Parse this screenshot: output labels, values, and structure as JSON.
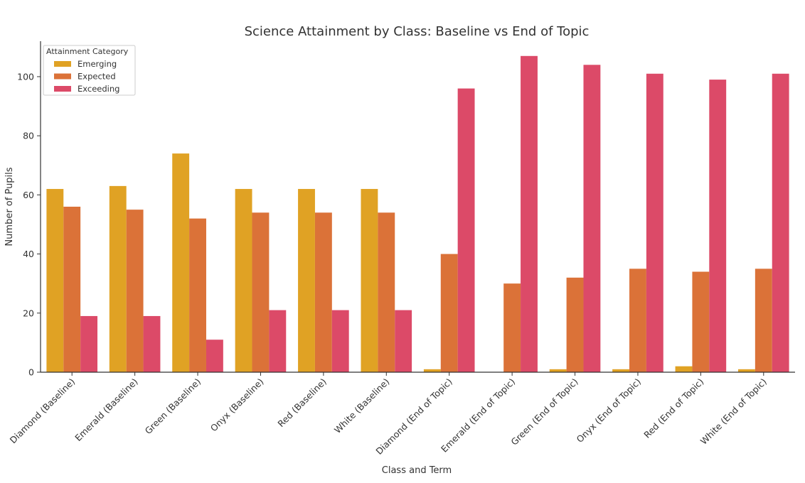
{
  "chart_data": {
    "type": "bar",
    "title": "Science Attainment by Class: Baseline vs End of Topic",
    "xlabel": "Class and Term",
    "ylabel": "Number of Pupils",
    "ylim": [
      0,
      112
    ],
    "yticks": [
      0,
      20,
      40,
      60,
      80,
      100
    ],
    "grid": false,
    "legend": {
      "title": "Attainment Category",
      "position": "top-left"
    },
    "categories": [
      "Diamond (Baseline)",
      "Emerald (Baseline)",
      "Green (Baseline)",
      "Onyx (Baseline)",
      "Red (Baseline)",
      "White (Baseline)",
      "Diamond (End of Topic)",
      "Emerald (End of Topic)",
      "Green (End of Topic)",
      "Onyx (End of Topic)",
      "Red (End of Topic)",
      "White (End of Topic)"
    ],
    "series": [
      {
        "name": "Emerging",
        "color": "#E0A224",
        "values": [
          62,
          63,
          74,
          62,
          62,
          62,
          1,
          0,
          1,
          1,
          2,
          1
        ]
      },
      {
        "name": "Expected",
        "color": "#DB7238",
        "values": [
          56,
          55,
          52,
          54,
          54,
          54,
          40,
          30,
          32,
          35,
          34,
          35
        ]
      },
      {
        "name": "Exceeding",
        "color": "#DC4A68",
        "values": [
          19,
          19,
          11,
          21,
          21,
          21,
          96,
          107,
          104,
          101,
          99,
          101
        ]
      }
    ]
  }
}
